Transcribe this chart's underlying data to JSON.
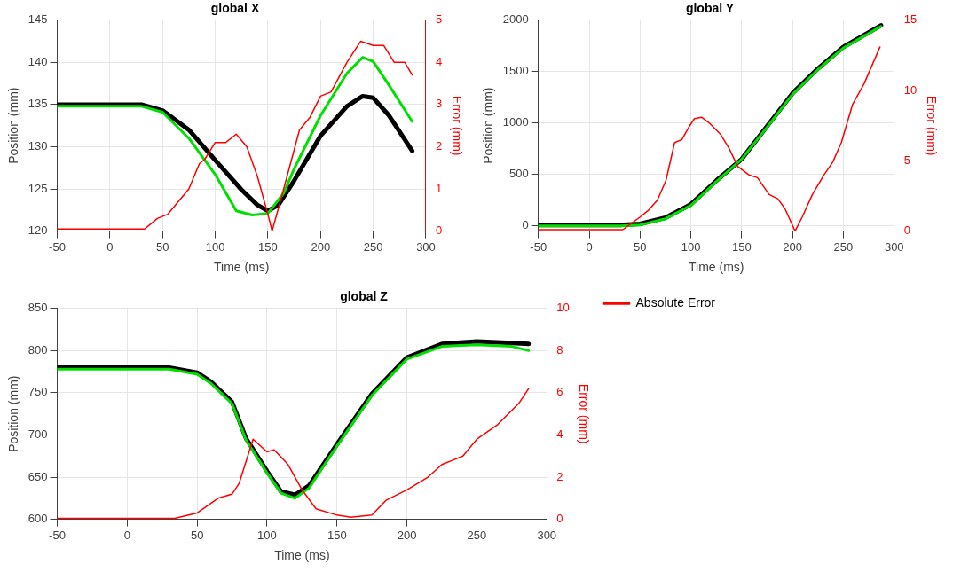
{
  "chart_data": [
    {
      "type": "line",
      "title": "global X",
      "xlabel": "Time (ms)",
      "ylabel": "Position (mm)",
      "y2label": "Error (mm)",
      "xlim": [
        -50,
        300
      ],
      "xticks": [
        -50,
        0,
        50,
        100,
        150,
        200,
        250,
        300
      ],
      "ylim": [
        120,
        145
      ],
      "yticks": [
        120,
        125,
        130,
        135,
        140,
        145
      ],
      "y2lim": [
        0,
        5
      ],
      "y2ticks": [
        0,
        1,
        2,
        3,
        4,
        5
      ],
      "grid": true,
      "marker": "none",
      "line_style": "solid",
      "series": [
        {
          "color": "#000000",
          "x": [
            -50,
            0,
            30,
            50,
            75,
            100,
            125,
            140,
            150,
            160,
            175,
            200,
            225,
            240,
            250,
            265,
            287
          ],
          "values": [
            135,
            135,
            135,
            134.3,
            132,
            128.4,
            124.9,
            123.1,
            122.4,
            123.1,
            126,
            131.3,
            134.8,
            136,
            135.8,
            133.7,
            129.5
          ]
        },
        {
          "color": "#00e000",
          "x": [
            -50,
            0,
            30,
            50,
            75,
            100,
            120,
            135,
            150,
            165,
            175,
            200,
            225,
            240,
            250,
            265,
            287
          ],
          "values": [
            134.8,
            134.8,
            134.8,
            134.1,
            131,
            126.7,
            122.4,
            121.9,
            122.1,
            124.5,
            127.4,
            133.7,
            138.7,
            140.6,
            140.1,
            137.3,
            133
          ]
        },
        {
          "color": "#ff0000",
          "axis": "y2",
          "x": [
            -50,
            0,
            33,
            45,
            55,
            65,
            75,
            85,
            90,
            100,
            110,
            120,
            130,
            140,
            150,
            154,
            165,
            180,
            190,
            200,
            210,
            225,
            238,
            250,
            260,
            270,
            280,
            287
          ],
          "values": [
            0.05,
            0.05,
            0.05,
            0.3,
            0.4,
            0.7,
            1,
            1.6,
            1.7,
            2.1,
            2.1,
            2.3,
            2,
            1.3,
            0.4,
            0,
            1,
            2.4,
            2.7,
            3.2,
            3.3,
            4,
            4.5,
            4.4,
            4.4,
            4,
            4,
            3.7
          ]
        }
      ]
    },
    {
      "type": "line",
      "title": "global Y",
      "xlabel": "Time (ms)",
      "ylabel": "Position (mm)",
      "y2label": "Error (mm)",
      "xlim": [
        -50,
        300
      ],
      "xticks": [
        -50,
        0,
        50,
        100,
        150,
        200,
        250,
        300
      ],
      "ylim": [
        -50,
        2000
      ],
      "yticks": [
        0,
        500,
        1000,
        1500,
        2000
      ],
      "y2lim": [
        0,
        15
      ],
      "y2ticks": [
        0,
        5,
        10,
        15
      ],
      "grid": true,
      "marker": "none",
      "line_style": "solid",
      "series": [
        {
          "color": "#000000",
          "x": [
            -50,
            0,
            30,
            50,
            75,
            100,
            125,
            150,
            175,
            200,
            225,
            250,
            287
          ],
          "values": [
            10,
            10,
            10,
            20,
            80,
            210,
            440,
            650,
            970,
            1290,
            1530,
            1740,
            1950
          ]
        },
        {
          "color": "#00e000",
          "x": [
            -50,
            0,
            30,
            50,
            75,
            100,
            125,
            150,
            175,
            200,
            225,
            250,
            287
          ],
          "values": [
            0,
            0,
            0,
            10,
            70,
            200,
            430,
            650,
            960,
            1280,
            1520,
            1730,
            1940
          ]
        },
        {
          "color": "#ff0000",
          "axis": "y2",
          "x": [
            -50,
            0,
            33,
            50,
            58.5,
            67,
            75.5,
            84,
            91,
            98,
            103.5,
            110.5,
            118,
            129,
            137.5,
            146,
            157,
            165.5,
            177,
            185.5,
            192.5,
            202.5,
            209.5,
            219.5,
            231,
            239.5,
            248,
            259,
            270.5,
            286
          ],
          "values": [
            0.1,
            0.1,
            0.1,
            1,
            1.5,
            2.2,
            3.6,
            6.3,
            6.5,
            7.4,
            8,
            8.1,
            7.7,
            6.9,
            5.9,
            4.6,
            4,
            3.8,
            2.6,
            2.3,
            1.6,
            0,
            1,
            2.6,
            4,
            4.9,
            6.3,
            9,
            10.5,
            13.1
          ]
        }
      ]
    },
    {
      "type": "line",
      "title": "global Z",
      "xlabel": "Time (ms)",
      "ylabel": "Position (mm)",
      "y2label": "Error (mm)",
      "xlim": [
        -50,
        300
      ],
      "xticks": [
        -50,
        0,
        50,
        100,
        150,
        200,
        250,
        300
      ],
      "ylim": [
        600,
        850
      ],
      "yticks": [
        600,
        650,
        700,
        750,
        800,
        850
      ],
      "y2lim": [
        0,
        10
      ],
      "y2ticks": [
        0,
        2,
        4,
        6,
        8,
        10
      ],
      "grid": true,
      "marker": "none",
      "line_style": "solid",
      "legend": "right",
      "series": [
        {
          "color": "#000000",
          "x": [
            -50,
            0,
            30,
            50,
            60,
            75,
            85,
            100,
            110,
            120,
            130,
            150,
            175,
            200,
            225,
            250,
            275,
            287
          ],
          "values": [
            780,
            780,
            780,
            774,
            763,
            739,
            696,
            657,
            633,
            629,
            640,
            689,
            749,
            792,
            808,
            811,
            809,
            808
          ]
        },
        {
          "color": "#00e000",
          "x": [
            -50,
            0,
            30,
            50,
            60,
            75,
            85,
            100,
            110,
            120,
            130,
            150,
            175,
            200,
            225,
            250,
            275,
            287
          ],
          "values": [
            778,
            778,
            778,
            772,
            761,
            737,
            694,
            655,
            631,
            625,
            637,
            687,
            747,
            790,
            805,
            807,
            805,
            800
          ]
        },
        {
          "name": "Absolute Error",
          "color": "#ff0000",
          "axis": "y2",
          "x": [
            -50,
            0,
            34,
            50,
            65,
            75,
            80,
            90,
            100,
            105,
            115,
            125,
            135,
            150,
            160,
            175,
            185,
            200,
            215,
            225,
            240,
            250,
            265,
            280,
            287
          ],
          "values": [
            0.05,
            0.05,
            0.05,
            0.3,
            1,
            1.2,
            1.7,
            3.8,
            3.2,
            3.3,
            2.6,
            1.4,
            0.5,
            0.2,
            0.1,
            0.2,
            0.9,
            1.4,
            2,
            2.6,
            3,
            3.8,
            4.5,
            5.5,
            6.2
          ]
        }
      ]
    }
  ]
}
